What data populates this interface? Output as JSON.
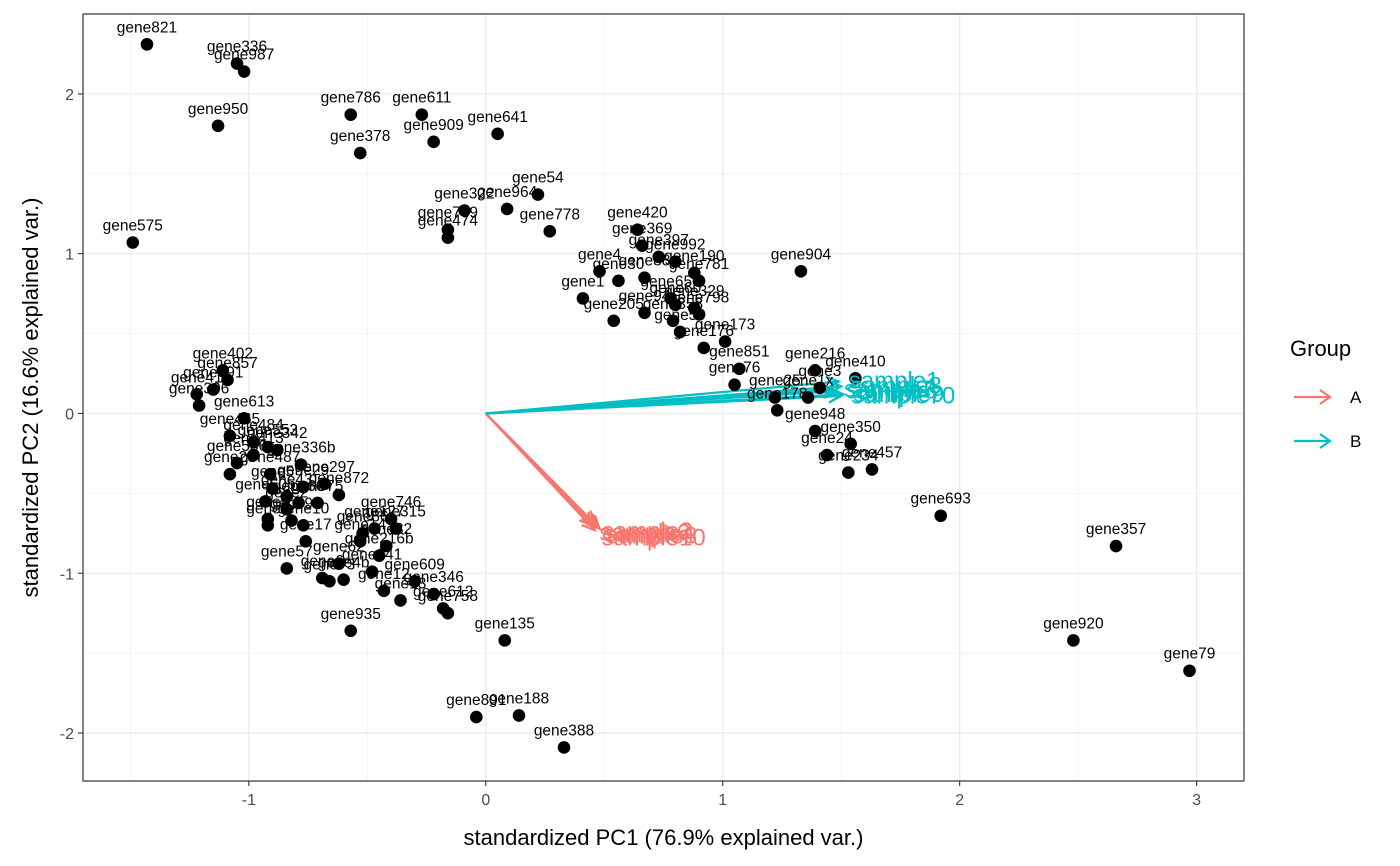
{
  "chart_data": {
    "type": "scatter",
    "subtype": "pca-biplot",
    "xlabel": "standardized PC1 (76.9% explained var.)",
    "ylabel": "standardized PC2 (16.6% explained var.)",
    "xlim": [
      -1.7,
      3.2
    ],
    "ylim": [
      -2.3,
      2.5
    ],
    "x_ticks": [
      -1,
      0,
      1,
      2,
      3
    ],
    "y_ticks": [
      -2,
      -1,
      0,
      1,
      2
    ],
    "grid": true,
    "legend": {
      "title": "Group",
      "position": "right",
      "entries": [
        {
          "label": "A",
          "color": "#F8766D"
        },
        {
          "label": "B",
          "color": "#00BFC4"
        }
      ]
    },
    "points": [
      {
        "label": "gene821",
        "x": -1.43,
        "y": 2.31
      },
      {
        "label": "gene336",
        "x": -1.05,
        "y": 2.19
      },
      {
        "label": "gene987",
        "x": -1.02,
        "y": 2.14
      },
      {
        "label": "gene950",
        "x": -1.13,
        "y": 1.8
      },
      {
        "label": "gene786",
        "x": -0.57,
        "y": 1.87
      },
      {
        "label": "gene611",
        "x": -0.27,
        "y": 1.87
      },
      {
        "label": "gene641",
        "x": 0.05,
        "y": 1.75
      },
      {
        "label": "gene909",
        "x": -0.22,
        "y": 1.7
      },
      {
        "label": "gene378",
        "x": -0.53,
        "y": 1.63
      },
      {
        "label": "gene575",
        "x": -1.49,
        "y": 1.07
      },
      {
        "label": "gene54",
        "x": 0.22,
        "y": 1.37
      },
      {
        "label": "gene322",
        "x": -0.09,
        "y": 1.27
      },
      {
        "label": "gene964",
        "x": 0.09,
        "y": 1.28
      },
      {
        "label": "gene709",
        "x": -0.16,
        "y": 1.15
      },
      {
        "label": "gene474",
        "x": -0.16,
        "y": 1.1
      },
      {
        "label": "gene778",
        "x": 0.27,
        "y": 1.14
      },
      {
        "label": "gene420",
        "x": 0.64,
        "y": 1.15
      },
      {
        "label": "gene369",
        "x": 0.66,
        "y": 1.05
      },
      {
        "label": "gene397",
        "x": 0.73,
        "y": 0.98
      },
      {
        "label": "gene904",
        "x": 1.33,
        "y": 0.89
      },
      {
        "label": "gene190",
        "x": 0.88,
        "y": 0.88
      },
      {
        "label": "gene992",
        "x": 0.8,
        "y": 0.95
      },
      {
        "label": "gene4",
        "x": 0.48,
        "y": 0.89
      },
      {
        "label": "gene30",
        "x": 0.56,
        "y": 0.83
      },
      {
        "label": "gene88",
        "x": 0.67,
        "y": 0.85
      },
      {
        "label": "gene1",
        "x": 0.41,
        "y": 0.72
      },
      {
        "label": "gene781",
        "x": 0.9,
        "y": 0.83
      },
      {
        "label": "gene650",
        "x": 0.78,
        "y": 0.72
      },
      {
        "label": "gene60",
        "x": 0.8,
        "y": 0.68
      },
      {
        "label": "gene329",
        "x": 0.88,
        "y": 0.66
      },
      {
        "label": "gene358",
        "x": 0.79,
        "y": 0.58
      },
      {
        "label": "gene94",
        "x": 0.67,
        "y": 0.63
      },
      {
        "label": "gene205",
        "x": 0.54,
        "y": 0.58
      },
      {
        "label": "gene798",
        "x": 0.9,
        "y": 0.62
      },
      {
        "label": "gene59",
        "x": 0.82,
        "y": 0.51
      },
      {
        "label": "gene173",
        "x": 1.01,
        "y": 0.45
      },
      {
        "label": "gene176",
        "x": 0.92,
        "y": 0.41
      },
      {
        "label": "gene216",
        "x": 1.39,
        "y": 0.27
      },
      {
        "label": "gene410",
        "x": 1.56,
        "y": 0.22
      },
      {
        "label": "gene851",
        "x": 1.07,
        "y": 0.28
      },
      {
        "label": "gene3",
        "x": 1.41,
        "y": 0.16
      },
      {
        "label": "gene1x",
        "x": 1.36,
        "y": 0.1
      },
      {
        "label": "gene76",
        "x": 1.05,
        "y": 0.18
      },
      {
        "label": "gene25",
        "x": 1.22,
        "y": 0.1
      },
      {
        "label": "gene178",
        "x": 1.23,
        "y": 0.02
      },
      {
        "label": "gene948",
        "x": 1.39,
        "y": -0.11
      },
      {
        "label": "gene350",
        "x": 1.54,
        "y": -0.19
      },
      {
        "label": "gene457",
        "x": 1.63,
        "y": -0.35
      },
      {
        "label": "gene24",
        "x": 1.44,
        "y": -0.26
      },
      {
        "label": "gene234",
        "x": 1.53,
        "y": -0.37
      },
      {
        "label": "gene693",
        "x": 1.92,
        "y": -0.64
      },
      {
        "label": "gene357",
        "x": 2.66,
        "y": -0.83
      },
      {
        "label": "gene920",
        "x": 2.48,
        "y": -1.42
      },
      {
        "label": "gene79",
        "x": 2.97,
        "y": -1.61
      },
      {
        "label": "gene402",
        "x": -1.11,
        "y": 0.27
      },
      {
        "label": "gene857",
        "x": -1.09,
        "y": 0.21
      },
      {
        "label": "gene691",
        "x": -1.15,
        "y": 0.15
      },
      {
        "label": "gene41",
        "x": -1.22,
        "y": 0.12
      },
      {
        "label": "gene306",
        "x": -1.21,
        "y": 0.05
      },
      {
        "label": "gene613",
        "x": -1.02,
        "y": -0.03
      },
      {
        "label": "gene465",
        "x": -1.08,
        "y": -0.14
      },
      {
        "label": "gene484",
        "x": -0.98,
        "y": -0.18
      },
      {
        "label": "gene553",
        "x": -0.92,
        "y": -0.21
      },
      {
        "label": "gene413",
        "x": -0.98,
        "y": -0.26
      },
      {
        "label": "gene342",
        "x": -0.88,
        "y": -0.23
      },
      {
        "label": "gene536",
        "x": -1.05,
        "y": -0.31
      },
      {
        "label": "gene20",
        "x": -1.08,
        "y": -0.38
      },
      {
        "label": "gene336b",
        "x": -0.78,
        "y": -0.32
      },
      {
        "label": "gene487",
        "x": -0.91,
        "y": -0.38
      },
      {
        "label": "gene297",
        "x": -0.68,
        "y": -0.44
      },
      {
        "label": "gene29",
        "x": -0.77,
        "y": -0.46
      },
      {
        "label": "gene872",
        "x": -0.62,
        "y": -0.51
      },
      {
        "label": "gene5",
        "x": -0.9,
        "y": -0.47
      },
      {
        "label": "gene43",
        "x": -0.84,
        "y": -0.52
      },
      {
        "label": "gene66",
        "x": -0.79,
        "y": -0.56
      },
      {
        "label": "gene75",
        "x": -0.71,
        "y": -0.56
      },
      {
        "label": "gene60b",
        "x": -0.93,
        "y": -0.55
      },
      {
        "label": "gene2",
        "x": -0.84,
        "y": -0.6
      },
      {
        "label": "gene746",
        "x": -0.4,
        "y": -0.66
      },
      {
        "label": "gene127",
        "x": -0.47,
        "y": -0.72
      },
      {
        "label": "gene315",
        "x": -0.38,
        "y": -0.72
      },
      {
        "label": "gene86",
        "x": -0.52,
        "y": -0.75
      },
      {
        "label": "gene8",
        "x": -0.92,
        "y": -0.66
      },
      {
        "label": "gene9",
        "x": -0.82,
        "y": -0.67
      },
      {
        "label": "gene7",
        "x": -0.92,
        "y": -0.7
      },
      {
        "label": "gene10",
        "x": -0.77,
        "y": -0.7
      },
      {
        "label": "gene82",
        "x": -0.42,
        "y": -0.83
      },
      {
        "label": "gene216b",
        "x": -0.45,
        "y": -0.89
      },
      {
        "label": "gene14",
        "x": -0.53,
        "y": -0.8
      },
      {
        "label": "gene17",
        "x": -0.76,
        "y": -0.8
      },
      {
        "label": "gene57",
        "x": -0.84,
        "y": -0.97
      },
      {
        "label": "gene62",
        "x": -0.62,
        "y": -0.94
      },
      {
        "label": "gene941",
        "x": -0.48,
        "y": -0.99
      },
      {
        "label": "gene6",
        "x": -0.69,
        "y": -1.03
      },
      {
        "label": "gene73",
        "x": -0.66,
        "y": -1.05
      },
      {
        "label": "gene4b",
        "x": -0.6,
        "y": -1.04
      },
      {
        "label": "gene609",
        "x": -0.3,
        "y": -1.05
      },
      {
        "label": "gene346",
        "x": -0.22,
        "y": -1.13
      },
      {
        "label": "gene612",
        "x": -0.18,
        "y": -1.22
      },
      {
        "label": "gene758",
        "x": -0.16,
        "y": -1.25
      },
      {
        "label": "gene12",
        "x": -0.43,
        "y": -1.11
      },
      {
        "label": "gene13",
        "x": -0.36,
        "y": -1.17
      },
      {
        "label": "gene935",
        "x": -0.57,
        "y": -1.36
      },
      {
        "label": "gene135",
        "x": 0.08,
        "y": -1.42
      },
      {
        "label": "gene891",
        "x": -0.04,
        "y": -1.9
      },
      {
        "label": "gene188",
        "x": 0.14,
        "y": -1.89
      },
      {
        "label": "gene388",
        "x": 0.33,
        "y": -2.09
      }
    ],
    "loadings": [
      {
        "label": "sample2",
        "group": "A",
        "x": 0.46,
        "y": -0.69
      },
      {
        "label": "sample4",
        "group": "A",
        "x": 0.47,
        "y": -0.71
      },
      {
        "label": "sample6",
        "group": "A",
        "x": 0.45,
        "y": -0.7
      },
      {
        "label": "sample8",
        "group": "A",
        "x": 0.48,
        "y": -0.72
      },
      {
        "label": "sample10",
        "group": "A",
        "x": 0.46,
        "y": -0.73
      },
      {
        "label": "sample1",
        "group": "B",
        "x": 1.49,
        "y": 0.2
      },
      {
        "label": "sample3",
        "group": "B",
        "x": 1.5,
        "y": 0.17
      },
      {
        "label": "sample5",
        "group": "B",
        "x": 1.48,
        "y": 0.14
      },
      {
        "label": "sample7",
        "group": "B",
        "x": 1.47,
        "y": 0.15
      },
      {
        "label": "sample9",
        "group": "B",
        "x": 1.51,
        "y": 0.12
      },
      {
        "label": "sample70",
        "group": "B",
        "x": 1.5,
        "y": 0.11
      }
    ]
  }
}
